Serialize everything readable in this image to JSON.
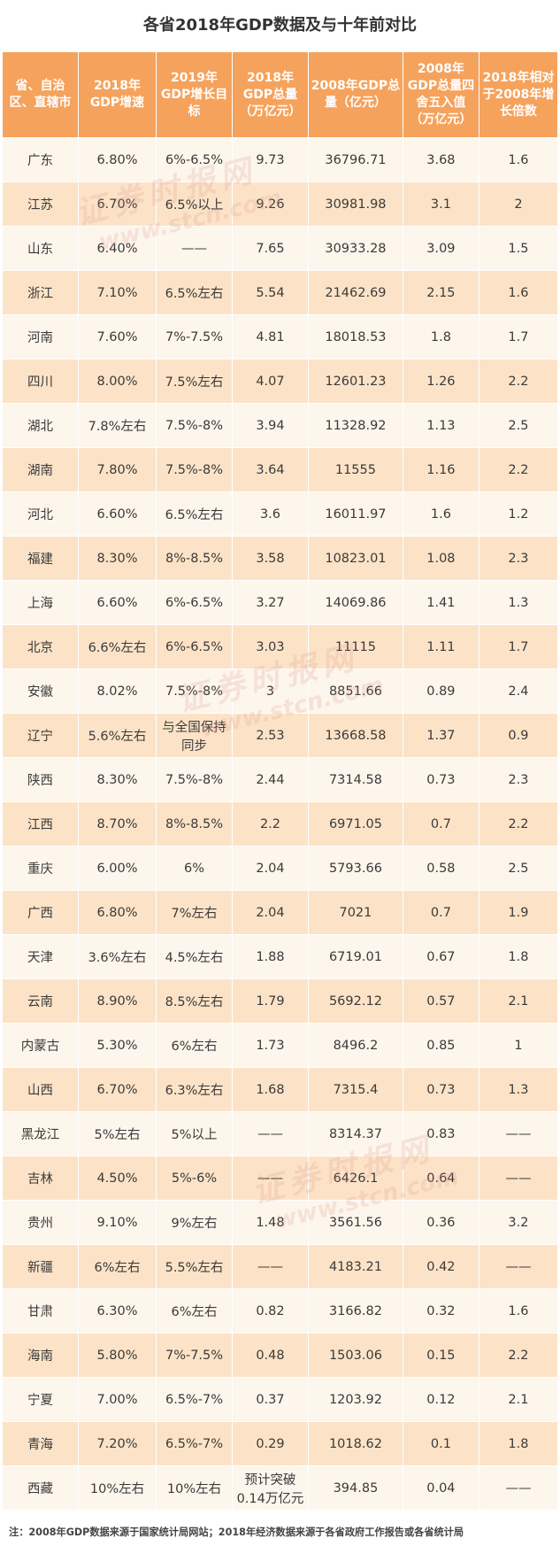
{
  "title": "各省2018年GDP数据及与十年前对比",
  "headers": [
    "省、自治区、直辖市",
    "2018年GDP增速",
    "2019年GDP增长目标",
    "2018年GDP总量（万亿元）",
    "2008年GDP总量（亿元）",
    "2008年GDP总量四舍五入值（万亿元）",
    "2018年相对于2008年增长倍数"
  ],
  "rows": [
    [
      "广东",
      "6.80%",
      "6%-6.5%",
      "9.73",
      "36796.71",
      "3.68",
      "1.6"
    ],
    [
      "江苏",
      "6.70%",
      "6.5%以上",
      "9.26",
      "30981.98",
      "3.1",
      "2"
    ],
    [
      "山东",
      "6.40%",
      "——",
      "7.65",
      "30933.28",
      "3.09",
      "1.5"
    ],
    [
      "浙江",
      "7.10%",
      "6.5%左右",
      "5.54",
      "21462.69",
      "2.15",
      "1.6"
    ],
    [
      "河南",
      "7.60%",
      "7%-7.5%",
      "4.81",
      "18018.53",
      "1.8",
      "1.7"
    ],
    [
      "四川",
      "8.00%",
      "7.5%左右",
      "4.07",
      "12601.23",
      "1.26",
      "2.2"
    ],
    [
      "湖北",
      "7.8%左右",
      "7.5%-8%",
      "3.94",
      "11328.92",
      "1.13",
      "2.5"
    ],
    [
      "湖南",
      "7.80%",
      "7.5%-8%",
      "3.64",
      "11555",
      "1.16",
      "2.2"
    ],
    [
      "河北",
      "6.60%",
      "6.5%左右",
      "3.6",
      "16011.97",
      "1.6",
      "1.2"
    ],
    [
      "福建",
      "8.30%",
      "8%-8.5%",
      "3.58",
      "10823.01",
      "1.08",
      "2.3"
    ],
    [
      "上海",
      "6.60%",
      "6%-6.5%",
      "3.27",
      "14069.86",
      "1.41",
      "1.3"
    ],
    [
      "北京",
      "6.6%左右",
      "6%-6.5%",
      "3.03",
      "11115",
      "1.11",
      "1.7"
    ],
    [
      "安徽",
      "8.02%",
      "7.5%-8%",
      "3",
      "8851.66",
      "0.89",
      "2.4"
    ],
    [
      "辽宁",
      "5.6%左右",
      "与全国保持同步",
      "2.53",
      "13668.58",
      "1.37",
      "0.9"
    ],
    [
      "陕西",
      "8.30%",
      "7.5%-8%",
      "2.44",
      "7314.58",
      "0.73",
      "2.3"
    ],
    [
      "江西",
      "8.70%",
      "8%-8.5%",
      "2.2",
      "6971.05",
      "0.7",
      "2.2"
    ],
    [
      "重庆",
      "6.00%",
      "6%",
      "2.04",
      "5793.66",
      "0.58",
      "2.5"
    ],
    [
      "广西",
      "6.80%",
      "7%左右",
      "2.04",
      "7021",
      "0.7",
      "1.9"
    ],
    [
      "天津",
      "3.6%左右",
      "4.5%左右",
      "1.88",
      "6719.01",
      "0.67",
      "1.8"
    ],
    [
      "云南",
      "8.90%",
      "8.5%左右",
      "1.79",
      "5692.12",
      "0.57",
      "2.1"
    ],
    [
      "内蒙古",
      "5.30%",
      "6%左右",
      "1.73",
      "8496.2",
      "0.85",
      "1"
    ],
    [
      "山西",
      "6.70%",
      "6.3%左右",
      "1.68",
      "7315.4",
      "0.73",
      "1.3"
    ],
    [
      "黑龙江",
      "5%左右",
      "5%以上",
      "——",
      "8314.37",
      "0.83",
      "——"
    ],
    [
      "吉林",
      "4.50%",
      "5%-6%",
      "——",
      "6426.1",
      "0.64",
      "——"
    ],
    [
      "贵州",
      "9.10%",
      "9%左右",
      "1.48",
      "3561.56",
      "0.36",
      "3.2"
    ],
    [
      "新疆",
      "6%左右",
      "5.5%左右",
      "——",
      "4183.21",
      "0.42",
      "——"
    ],
    [
      "甘肃",
      "6.30%",
      "6%左右",
      "0.82",
      "3166.82",
      "0.32",
      "1.6"
    ],
    [
      "海南",
      "5.80%",
      "7%-7.5%",
      "0.48",
      "1503.06",
      "0.15",
      "2.2"
    ],
    [
      "宁夏",
      "7.00%",
      "6.5%-7%",
      "0.37",
      "1203.92",
      "0.12",
      "2.1"
    ],
    [
      "青海",
      "7.20%",
      "6.5%-7%",
      "0.29",
      "1018.62",
      "0.1",
      "1.8"
    ],
    [
      "西藏",
      "10%左右",
      "10%左右",
      "预计突破0.14万亿元",
      "394.85",
      "0.04",
      "——"
    ]
  ],
  "watermark": {
    "cn": "证券时报网",
    "en": "www.stcn.com"
  },
  "note": "注：2008年GDP数据来源于国家统计局网站；2018年经济数据来源于各省政府工作报告或各省统计局"
}
